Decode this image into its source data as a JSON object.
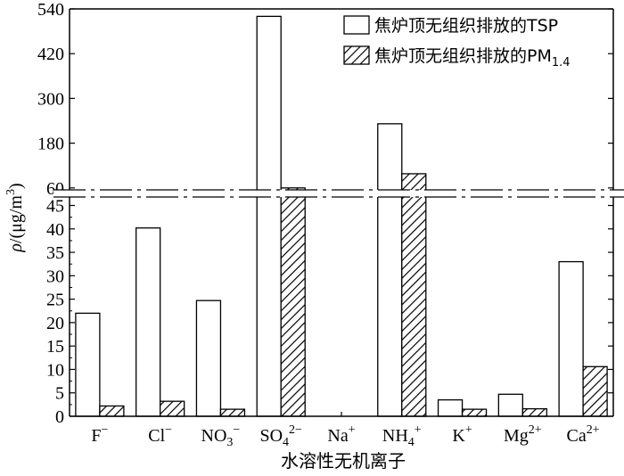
{
  "chart_data": {
    "type": "bar",
    "categories": [
      "F⁻",
      "Cl⁻",
      "NO₃⁻",
      "SO₄²⁻",
      "Na⁺",
      "NH₄⁺",
      "K⁺",
      "Mg²⁺",
      "Ca²⁺"
    ],
    "category_labels": [
      {
        "base": "F",
        "sub": "",
        "sup": "−"
      },
      {
        "base": "Cl",
        "sub": "",
        "sup": "−"
      },
      {
        "base": "NO",
        "sub": "3",
        "sup": "−"
      },
      {
        "base": "SO",
        "sub": "4",
        "sup": "2−"
      },
      {
        "base": "Na",
        "sub": "",
        "sup": "+"
      },
      {
        "base": "NH",
        "sub": "4",
        "sup": "+"
      },
      {
        "base": "K",
        "sub": "",
        "sup": "+"
      },
      {
        "base": "Mg",
        "sub": "",
        "sup": "2+"
      },
      {
        "base": "Ca",
        "sub": "",
        "sup": "2+"
      }
    ],
    "series": [
      {
        "name": "焦炉顶无组织排放的TSP",
        "fill": "white",
        "values": [
          22,
          40.2,
          24.7,
          520,
          0,
          232,
          3.5,
          4.7,
          33
        ]
      },
      {
        "name": "焦炉顶无组织排放的PM1.4",
        "fill": "hatch",
        "values": [
          2.2,
          3.2,
          1.5,
          60,
          0,
          98,
          1.5,
          1.6,
          10.6
        ]
      }
    ],
    "legend": [
      {
        "text": "焦炉顶无组织排放的TSP",
        "sub": ""
      },
      {
        "text": "焦炉顶无组织排放的PM",
        "sub": "1.4"
      }
    ],
    "xlabel": "水溶性无机离子",
    "ylabel": {
      "symbol": "ρ",
      "unit_open": "/(μg/m",
      "unit_sup": "3",
      "unit_close": ")"
    },
    "broken_axis": true,
    "lower_axis": {
      "ylim": [
        0,
        47
      ],
      "ticks": [
        0,
        5,
        10,
        15,
        20,
        25,
        30,
        35,
        40,
        45
      ]
    },
    "upper_axis": {
      "ylim": [
        50,
        540
      ],
      "ticks": [
        60,
        180,
        300,
        420,
        540
      ]
    },
    "legend_position": "top-right",
    "grid": false
  }
}
